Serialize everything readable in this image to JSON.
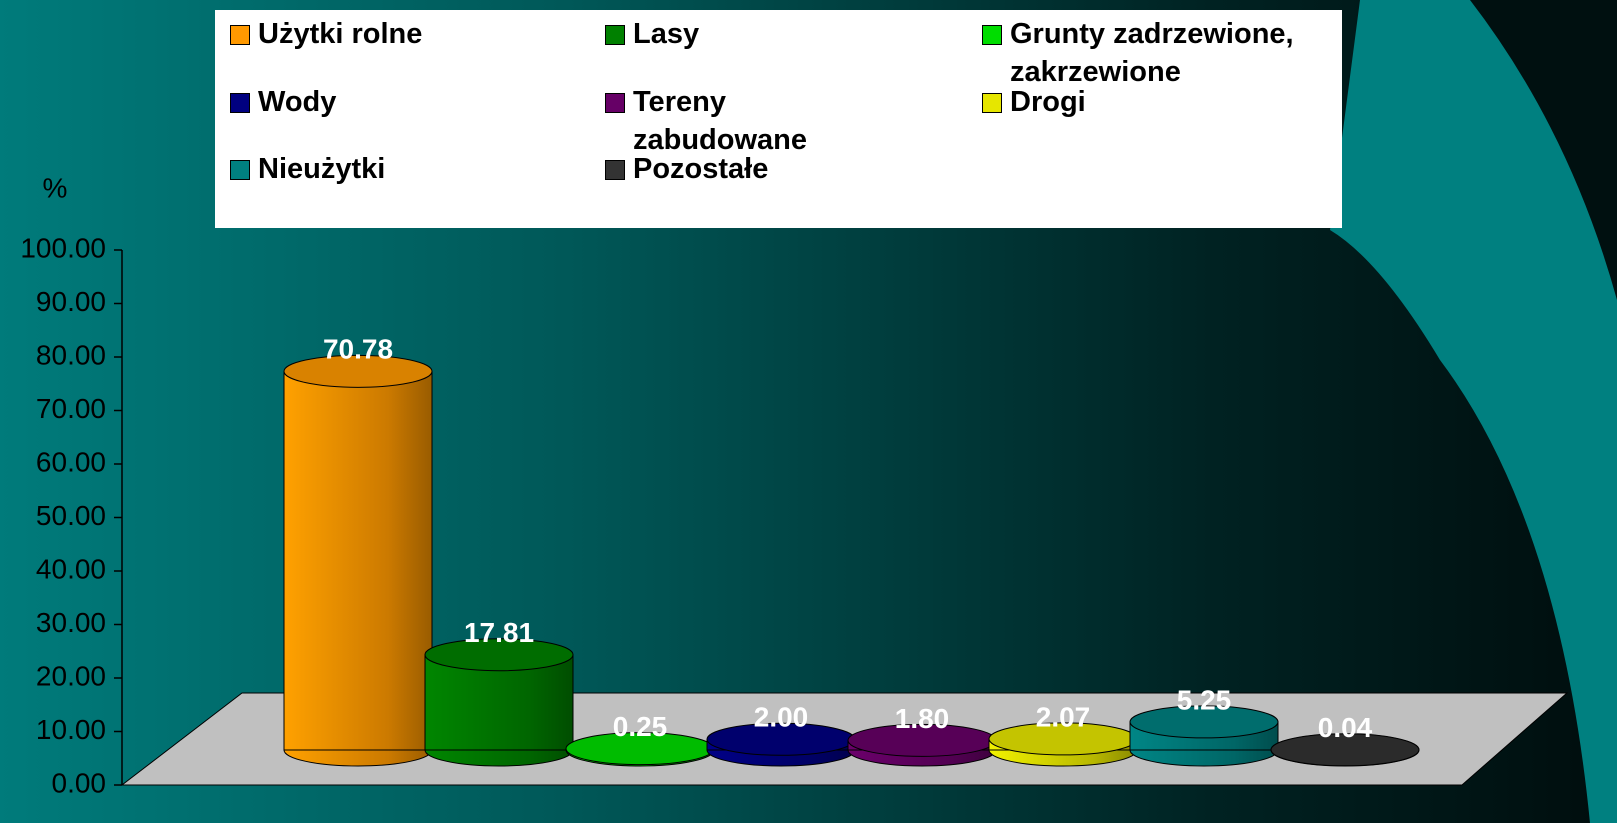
{
  "chart_data": {
    "type": "bar3d",
    "y_axis_label": "%",
    "ylim": [
      0,
      100
    ],
    "yticks": [
      {
        "value": 0,
        "label": "0.00"
      },
      {
        "value": 10,
        "label": "10.00"
      },
      {
        "value": 20,
        "label": "20.00"
      },
      {
        "value": 30,
        "label": "30.00"
      },
      {
        "value": 40,
        "label": "40.00"
      },
      {
        "value": 50,
        "label": "50.00"
      },
      {
        "value": 60,
        "label": "60.00"
      },
      {
        "value": 70,
        "label": "70.00"
      },
      {
        "value": 80,
        "label": "80.00"
      },
      {
        "value": 90,
        "label": "90.00"
      },
      {
        "value": 100,
        "label": "100.00"
      }
    ],
    "legend_position": "top",
    "series": [
      {
        "name": "Użytki rolne",
        "color": "#ff9900",
        "values": [
          70.78
        ],
        "value_labels": [
          "70.78"
        ]
      },
      {
        "name": "Lasy",
        "color": "#008000",
        "values": [
          17.81
        ],
        "value_labels": [
          "17.81"
        ]
      },
      {
        "name": "Grunty zadrzewione, zakrzewione",
        "color": "#00dd00",
        "values": [
          0.25
        ],
        "value_labels": [
          "0.25"
        ]
      },
      {
        "name": "Wody",
        "color": "#000080",
        "values": [
          2.0
        ],
        "value_labels": [
          "2.00"
        ]
      },
      {
        "name": "Tereny zabudowane",
        "color": "#660066",
        "values": [
          1.8
        ],
        "value_labels": [
          "1.80"
        ]
      },
      {
        "name": "Drogi",
        "color": "#e6e600",
        "values": [
          2.07
        ],
        "value_labels": [
          "2.07"
        ]
      },
      {
        "name": "Nieużytki",
        "color": "#008080",
        "values": [
          5.25
        ],
        "value_labels": [
          "5.25"
        ]
      },
      {
        "name": "Pozostałe",
        "color": "#333333",
        "values": [
          0.04
        ],
        "value_labels": [
          "0.04"
        ]
      }
    ]
  }
}
